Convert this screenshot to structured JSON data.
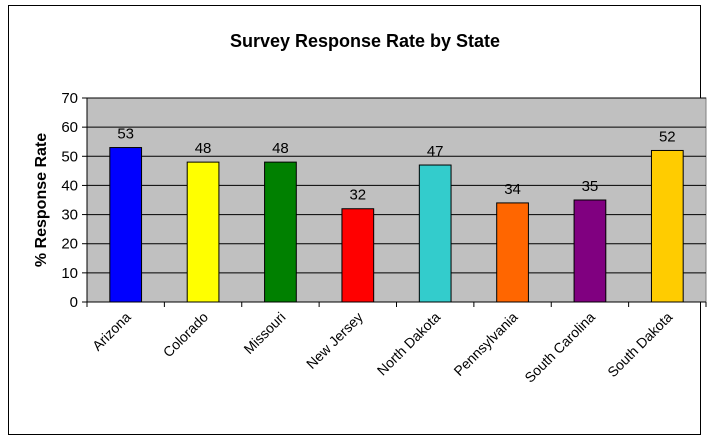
{
  "chart_data": {
    "type": "bar",
    "title": "Survey Response Rate by State",
    "xlabel": "",
    "ylabel": "% Response Rate",
    "ylim": [
      0,
      70
    ],
    "yticks": [
      0,
      10,
      20,
      30,
      40,
      50,
      60,
      70
    ],
    "grid": true,
    "legend": "none",
    "plot_background": "#c0c0c0",
    "categories": [
      "Arizona",
      "Colorado",
      "Missouri",
      "New Jersey",
      "North Dakota",
      "Pennsylvania",
      "South Carolina",
      "South Dakota"
    ],
    "values": [
      53,
      48,
      48,
      32,
      47,
      34,
      35,
      52
    ],
    "colors": [
      "#0000ff",
      "#ffff00",
      "#008000",
      "#ff0000",
      "#33cccc",
      "#ff6600",
      "#800080",
      "#ffcc00"
    ],
    "data_labels": [
      "53",
      "48",
      "48",
      "32",
      "47",
      "34",
      "35",
      "52"
    ]
  }
}
